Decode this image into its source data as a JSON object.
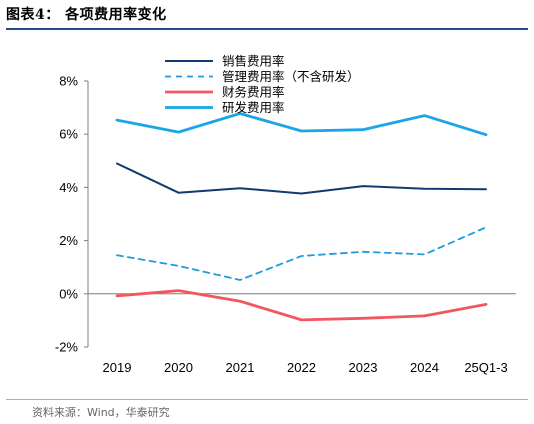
{
  "figure": {
    "title": "图表4：  各项费用率变化",
    "source": "资料来源：Wind，华泰研究"
  },
  "colors": {
    "sales": "#123a6e",
    "management": "#1e9bdc",
    "finance": "#f0575e",
    "rd": "#1aa6e6",
    "rule": "#1f4e8c"
  },
  "chart_data": {
    "type": "line",
    "categories": [
      "2019",
      "2020",
      "2021",
      "2022",
      "2023",
      "2024",
      "25Q1-3"
    ],
    "yticks": [
      "8%",
      "6%",
      "4%",
      "2%",
      "0%",
      "-2%"
    ],
    "ylim": [
      -2,
      8
    ],
    "grid": false,
    "legend_position": "top-center",
    "series": [
      {
        "name": "销售费用率",
        "style": "solid",
        "color": "#123a6e",
        "values": [
          4.9,
          3.8,
          3.97,
          3.77,
          4.05,
          3.95,
          3.93
        ]
      },
      {
        "name": "管理费用率（不含研发）",
        "style": "dashed",
        "color": "#1e9bdc",
        "values": [
          1.45,
          1.05,
          0.52,
          1.42,
          1.58,
          1.48,
          2.5
        ]
      },
      {
        "name": "财务费用率",
        "style": "solid",
        "color": "#f0575e",
        "values": [
          -0.08,
          0.12,
          -0.28,
          -0.98,
          -0.92,
          -0.83,
          -0.4
        ]
      },
      {
        "name": "研发费用率",
        "style": "solid",
        "color": "#1aa6e6",
        "values": [
          6.53,
          6.08,
          6.78,
          6.12,
          6.17,
          6.7,
          5.98
        ]
      }
    ]
  }
}
